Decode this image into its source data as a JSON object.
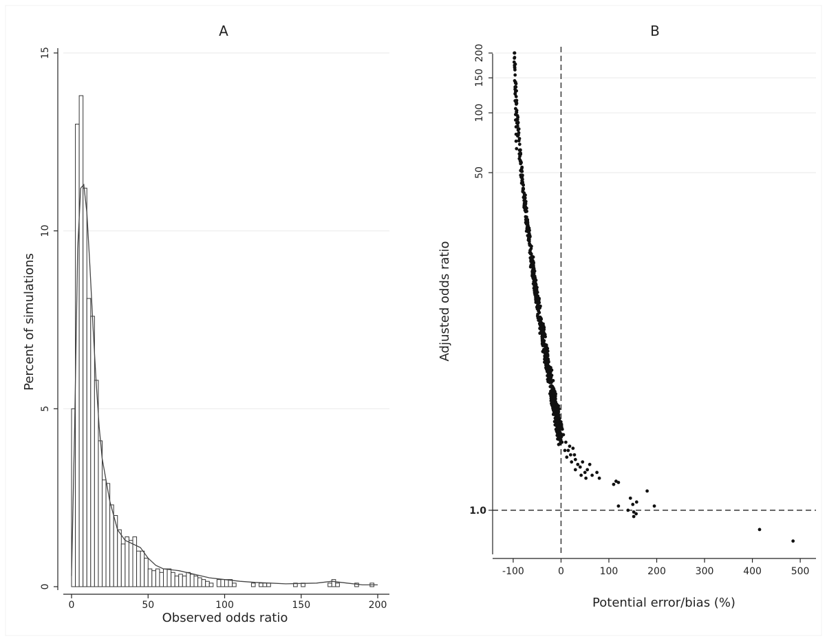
{
  "chart_data": [
    {
      "type": "bar",
      "panel_label": "A",
      "xlabel": "Observed odds ratio",
      "ylabel": "Percent of simulations",
      "xlim": [
        0,
        200
      ],
      "ylim": [
        0,
        15
      ],
      "xticks": [
        0,
        50,
        100,
        150,
        200
      ],
      "yticks": [
        0,
        5,
        10,
        15
      ],
      "grid": true,
      "bin_width": 2.5,
      "bins": [
        {
          "x": 0,
          "y": 5.0
        },
        {
          "x": 2.5,
          "y": 13.0
        },
        {
          "x": 5,
          "y": 13.8
        },
        {
          "x": 7.5,
          "y": 11.2
        },
        {
          "x": 10,
          "y": 8.1
        },
        {
          "x": 12.5,
          "y": 7.6
        },
        {
          "x": 15,
          "y": 5.8
        },
        {
          "x": 17.5,
          "y": 4.1
        },
        {
          "x": 20,
          "y": 3.0
        },
        {
          "x": 22.5,
          "y": 2.9
        },
        {
          "x": 25,
          "y": 2.3
        },
        {
          "x": 27.5,
          "y": 2.0
        },
        {
          "x": 30,
          "y": 1.6
        },
        {
          "x": 32.5,
          "y": 1.2
        },
        {
          "x": 35,
          "y": 1.4
        },
        {
          "x": 37.5,
          "y": 1.3
        },
        {
          "x": 40,
          "y": 1.4
        },
        {
          "x": 42.5,
          "y": 1.0
        },
        {
          "x": 45,
          "y": 1.0
        },
        {
          "x": 47.5,
          "y": 0.8
        },
        {
          "x": 50,
          "y": 0.5
        },
        {
          "x": 52.5,
          "y": 0.45
        },
        {
          "x": 55,
          "y": 0.5
        },
        {
          "x": 57.5,
          "y": 0.4
        },
        {
          "x": 60,
          "y": 0.5
        },
        {
          "x": 62.5,
          "y": 0.5
        },
        {
          "x": 65,
          "y": 0.4
        },
        {
          "x": 67.5,
          "y": 0.3
        },
        {
          "x": 70,
          "y": 0.35
        },
        {
          "x": 72.5,
          "y": 0.3
        },
        {
          "x": 75,
          "y": 0.4
        },
        {
          "x": 77.5,
          "y": 0.35
        },
        {
          "x": 80,
          "y": 0.3
        },
        {
          "x": 82.5,
          "y": 0.25
        },
        {
          "x": 85,
          "y": 0.2
        },
        {
          "x": 87.5,
          "y": 0.15
        },
        {
          "x": 90,
          "y": 0.1
        },
        {
          "x": 95,
          "y": 0.2
        },
        {
          "x": 97.5,
          "y": 0.2
        },
        {
          "x": 100,
          "y": 0.2
        },
        {
          "x": 102.5,
          "y": 0.2
        },
        {
          "x": 105,
          "y": 0.1
        },
        {
          "x": 117.5,
          "y": 0.1
        },
        {
          "x": 122.5,
          "y": 0.1
        },
        {
          "x": 125,
          "y": 0.1
        },
        {
          "x": 127.5,
          "y": 0.1
        },
        {
          "x": 145,
          "y": 0.1
        },
        {
          "x": 150,
          "y": 0.1
        },
        {
          "x": 167.5,
          "y": 0.1
        },
        {
          "x": 170,
          "y": 0.2
        },
        {
          "x": 172.5,
          "y": 0.1
        },
        {
          "x": 185,
          "y": 0.1
        },
        {
          "x": 195,
          "y": 0.1
        }
      ],
      "density_curve": {
        "x": [
          0,
          2,
          4,
          6,
          8,
          10,
          12,
          14,
          16,
          18,
          20,
          25,
          30,
          35,
          40,
          45,
          50,
          55,
          60,
          70,
          80,
          90,
          100,
          110,
          120,
          130,
          140,
          150,
          160,
          170,
          180,
          190,
          200
        ],
        "y": [
          0.3,
          4.5,
          9.5,
          11.2,
          11.3,
          10.5,
          9.0,
          7.3,
          5.8,
          4.5,
          3.6,
          2.4,
          1.6,
          1.3,
          1.2,
          1.1,
          0.8,
          0.6,
          0.5,
          0.45,
          0.35,
          0.25,
          0.2,
          0.15,
          0.12,
          0.1,
          0.08,
          0.09,
          0.1,
          0.15,
          0.1,
          0.05,
          0.05
        ]
      }
    },
    {
      "type": "scatter",
      "panel_label": "B",
      "xlabel": "Potential error/bias (%)",
      "ylabel": "Adjusted odds ratio",
      "xlim": [
        -120,
        520
      ],
      "xticks": [
        -100,
        0,
        100,
        200,
        300,
        400,
        500
      ],
      "ylim": [
        0.6,
        215
      ],
      "yscale": "log",
      "yticks": [
        50,
        100,
        150,
        200
      ],
      "yticks_bold": [
        "1.0"
      ],
      "grid": true,
      "reference_lines": {
        "x": 0,
        "y": 1.0
      },
      "dense_curve": {
        "x_from": -97,
        "x_to": 0,
        "y_from": 200,
        "y_to": 2.3,
        "count": 650,
        "x_spread": 2.2,
        "y_spread": 0.06
      },
      "points": [
        {
          "x": -97,
          "y": 200
        },
        {
          "x": -97,
          "y": 190
        },
        {
          "x": -98,
          "y": 180
        },
        {
          "x": -97,
          "y": 170
        },
        {
          "x": -96,
          "y": 155
        },
        {
          "x": -97,
          "y": 145
        },
        {
          "x": -96,
          "y": 135
        },
        {
          "x": -96,
          "y": 125
        },
        {
          "x": -96,
          "y": 115
        },
        {
          "x": -95,
          "y": 105
        },
        {
          "x": -95,
          "y": 98
        },
        {
          "x": -95,
          "y": 92
        },
        {
          "x": -94,
          "y": 85
        },
        {
          "x": -94,
          "y": 78
        },
        {
          "x": -94,
          "y": 72
        },
        {
          "x": -93,
          "y": 66
        },
        {
          "x": 5,
          "y": 2.4
        },
        {
          "x": 10,
          "y": 2.2
        },
        {
          "x": 15,
          "y": 2.0
        },
        {
          "x": 20,
          "y": 1.9
        },
        {
          "x": 25,
          "y": 2.05
        },
        {
          "x": 30,
          "y": 1.8
        },
        {
          "x": 35,
          "y": 1.7
        },
        {
          "x": 40,
          "y": 1.65
        },
        {
          "x": 45,
          "y": 1.75
        },
        {
          "x": 50,
          "y": 1.55
        },
        {
          "x": 55,
          "y": 1.6
        },
        {
          "x": 60,
          "y": 1.7
        },
        {
          "x": 65,
          "y": 1.5
        },
        {
          "x": 75,
          "y": 1.55
        },
        {
          "x": 80,
          "y": 1.45
        },
        {
          "x": 30,
          "y": 1.6
        },
        {
          "x": 42,
          "y": 1.5
        },
        {
          "x": 52,
          "y": 1.45
        },
        {
          "x": 12,
          "y": 1.85
        },
        {
          "x": 22,
          "y": 1.75
        },
        {
          "x": 18,
          "y": 2.1
        },
        {
          "x": 8,
          "y": 2.0
        },
        {
          "x": 2,
          "y": 2.2
        },
        {
          "x": 28,
          "y": 1.9
        },
        {
          "x": 110,
          "y": 1.35
        },
        {
          "x": 115,
          "y": 1.4
        },
        {
          "x": 120,
          "y": 1.38
        },
        {
          "x": 120,
          "y": 1.05
        },
        {
          "x": 140,
          "y": 1.0
        },
        {
          "x": 145,
          "y": 1.15
        },
        {
          "x": 150,
          "y": 1.07
        },
        {
          "x": 152,
          "y": 0.98
        },
        {
          "x": 152,
          "y": 0.93
        },
        {
          "x": 157,
          "y": 0.96
        },
        {
          "x": 158,
          "y": 1.1
        },
        {
          "x": 180,
          "y": 1.25
        },
        {
          "x": 195,
          "y": 1.05
        },
        {
          "x": 415,
          "y": 0.8
        },
        {
          "x": 485,
          "y": 0.7
        }
      ]
    }
  ]
}
